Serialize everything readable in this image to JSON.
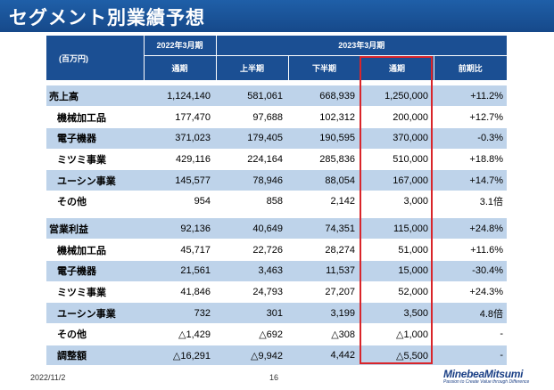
{
  "title": "セグメント別業績予想",
  "header": {
    "unit": "(百万円)",
    "period_prev": "2022年3月期",
    "period_curr": "2023年3月期",
    "col_prev_full": "通期",
    "col_h1": "上半期",
    "col_h2": "下半期",
    "col_full": "通期",
    "col_yoy": "前期比"
  },
  "sales": {
    "label": "売上高",
    "values": [
      "1,124,140",
      "581,061",
      "668,939",
      "1,250,000",
      "+11.2%"
    ],
    "rows": [
      {
        "label": "機械加工品",
        "values": [
          "177,470",
          "97,688",
          "102,312",
          "200,000",
          "+12.7%"
        ]
      },
      {
        "label": "電子機器",
        "values": [
          "371,023",
          "179,405",
          "190,595",
          "370,000",
          "-0.3%"
        ]
      },
      {
        "label": "ミツミ事業",
        "values": [
          "429,116",
          "224,164",
          "285,836",
          "510,000",
          "+18.8%"
        ]
      },
      {
        "label": "ユーシン事業",
        "values": [
          "145,577",
          "78,946",
          "88,054",
          "167,000",
          "+14.7%"
        ]
      },
      {
        "label": "その他",
        "values": [
          "954",
          "858",
          "2,142",
          "3,000",
          "3.1倍"
        ]
      }
    ]
  },
  "profit": {
    "label": "営業利益",
    "values": [
      "92,136",
      "40,649",
      "74,351",
      "115,000",
      "+24.8%"
    ],
    "rows": [
      {
        "label": "機械加工品",
        "values": [
          "45,717",
          "22,726",
          "28,274",
          "51,000",
          "+11.6%"
        ]
      },
      {
        "label": "電子機器",
        "values": [
          "21,561",
          "3,463",
          "11,537",
          "15,000",
          "-30.4%"
        ]
      },
      {
        "label": "ミツミ事業",
        "values": [
          "41,846",
          "24,793",
          "27,207",
          "52,000",
          "+24.3%"
        ]
      },
      {
        "label": "ユーシン事業",
        "values": [
          "732",
          "301",
          "3,199",
          "3,500",
          "4.8倍"
        ]
      },
      {
        "label": "その他",
        "values": [
          "△1,429",
          "△692",
          "△308",
          "△1,000",
          "-"
        ]
      },
      {
        "label": "調整額",
        "values": [
          "△16,291",
          "△9,942",
          "4,442",
          "△5,500",
          "-"
        ]
      }
    ]
  },
  "footer": {
    "date": "2022/11/2",
    "page": "16",
    "logo_name": "MinebeaMitsumi",
    "logo_tagline": "Passion to Create Value through Difference"
  }
}
